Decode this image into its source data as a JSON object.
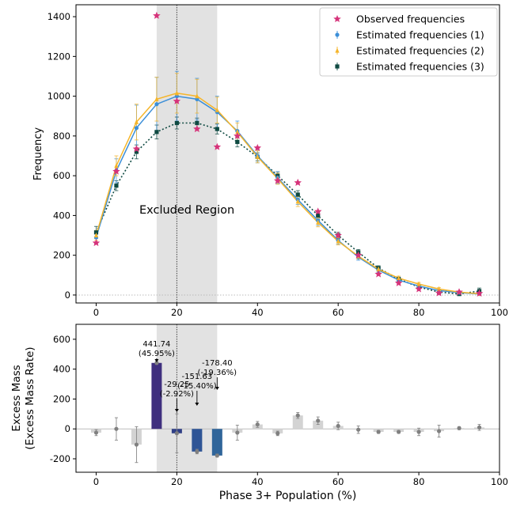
{
  "chart_data": [
    {
      "type": "line",
      "title": "",
      "xlabel": "",
      "ylabel": "Frequency",
      "xlim": [
        -5,
        100
      ],
      "ylim": [
        -40,
        1460
      ],
      "xticks": [
        0,
        20,
        40,
        60,
        80,
        100
      ],
      "yticks": [
        0,
        200,
        400,
        600,
        800,
        1000,
        1200,
        1400
      ],
      "grid": false,
      "legend_position": "top-right",
      "excluded_region": {
        "x0": 15,
        "x1": 30,
        "label": "Excluded Region"
      },
      "vertical_line_x": 20,
      "zero_line": true,
      "x": [
        0,
        5,
        10,
        15,
        20,
        25,
        30,
        35,
        40,
        45,
        50,
        55,
        60,
        65,
        70,
        75,
        80,
        85,
        90,
        95
      ],
      "series": [
        {
          "name": "Observed frequencies",
          "marker": "star",
          "color": "#d6337a",
          "values": [
            262,
            622,
            735,
            1405,
            975,
            835,
            745,
            800,
            740,
            575,
            565,
            420,
            300,
            200,
            105,
            60,
            30,
            10,
            15,
            8
          ]
        },
        {
          "name": "Estimated frequencies (1)",
          "marker": "circle",
          "line": "solid",
          "color": "#3c8fd8",
          "values": [
            290,
            625,
            840,
            960,
            1000,
            985,
            920,
            825,
            700,
            590,
            480,
            375,
            275,
            190,
            125,
            75,
            45,
            22,
            12,
            5
          ],
          "errors": [
            30,
            60,
            115,
            135,
            125,
            105,
            80,
            50,
            35,
            30,
            25,
            25,
            20,
            15,
            12,
            10,
            10,
            8,
            6,
            5
          ]
        },
        {
          "name": "Estimated frequencies (2)",
          "marker": "triangle",
          "line": "solid",
          "color": "#f5b52a",
          "values": [
            300,
            650,
            870,
            985,
            1015,
            1000,
            930,
            820,
            695,
            585,
            470,
            365,
            270,
            195,
            130,
            85,
            55,
            30,
            15,
            6
          ],
          "errors": [
            25,
            50,
            90,
            110,
            100,
            85,
            65,
            45,
            30,
            28,
            25,
            22,
            18,
            14,
            12,
            10,
            8,
            7,
            5,
            5
          ]
        },
        {
          "name": "Estimated frequencies (3)",
          "marker": "square",
          "line": "dotted",
          "color": "#0f4a42",
          "values": [
            315,
            550,
            720,
            820,
            865,
            865,
            835,
            770,
            695,
            600,
            505,
            400,
            300,
            215,
            135,
            80,
            40,
            15,
            5,
            20
          ],
          "errors": [
            30,
            25,
            35,
            35,
            30,
            25,
            25,
            25,
            20,
            20,
            20,
            18,
            15,
            14,
            12,
            10,
            10,
            8,
            6,
            15
          ]
        }
      ],
      "legend_entries": [
        "Observed frequencies",
        "Estimated frequencies (1)",
        "Estimated frequencies (2)",
        "Estimated frequencies (3)"
      ],
      "annotations": [
        "Excluded Region"
      ]
    },
    {
      "type": "bar",
      "title": "",
      "xlabel": "Phase 3+ Population (%)",
      "ylabel_lines": [
        "Excess Mass",
        "(Excess Mass Rate)"
      ],
      "xlim": [
        -5,
        100
      ],
      "ylim": [
        -290,
        700
      ],
      "xticks": [
        0,
        20,
        40,
        60,
        80,
        100
      ],
      "yticks": [
        -200,
        0,
        200,
        400,
        600
      ],
      "grid": false,
      "excluded_region": {
        "x0": 15,
        "x1": 30
      },
      "vertical_line_x": 20,
      "zero_line": true,
      "x": [
        0,
        5,
        10,
        15,
        20,
        25,
        30,
        35,
        40,
        45,
        50,
        55,
        60,
        65,
        70,
        75,
        80,
        85,
        90,
        95
      ],
      "values": [
        -25,
        0,
        -105,
        441.74,
        -29.25,
        -151.63,
        -178.4,
        -25,
        30,
        -30,
        90,
        55,
        20,
        -5,
        -20,
        -20,
        -20,
        -15,
        5,
        10
      ],
      "errors": [
        20,
        75,
        120,
        10,
        130,
        15,
        10,
        50,
        20,
        15,
        20,
        25,
        25,
        25,
        10,
        10,
        25,
        40,
        10,
        20
      ],
      "highlighted": {
        "15": "#3f2f7e",
        "20": "#2f3f86",
        "25": "#2f5596",
        "30": "#30659a"
      },
      "bar_color_default": "#d3d3d3",
      "bar_labels": [
        {
          "x": 15,
          "value": "441.74",
          "rate": "(45.95%)"
        },
        {
          "x": 20,
          "value": "-29.25",
          "rate": "(-2.92%)"
        },
        {
          "x": 25,
          "value": "-151.63",
          "rate": "(-15.40%)"
        },
        {
          "x": 30,
          "value": "-178.40",
          "rate": "(-19.36%)"
        }
      ]
    }
  ]
}
